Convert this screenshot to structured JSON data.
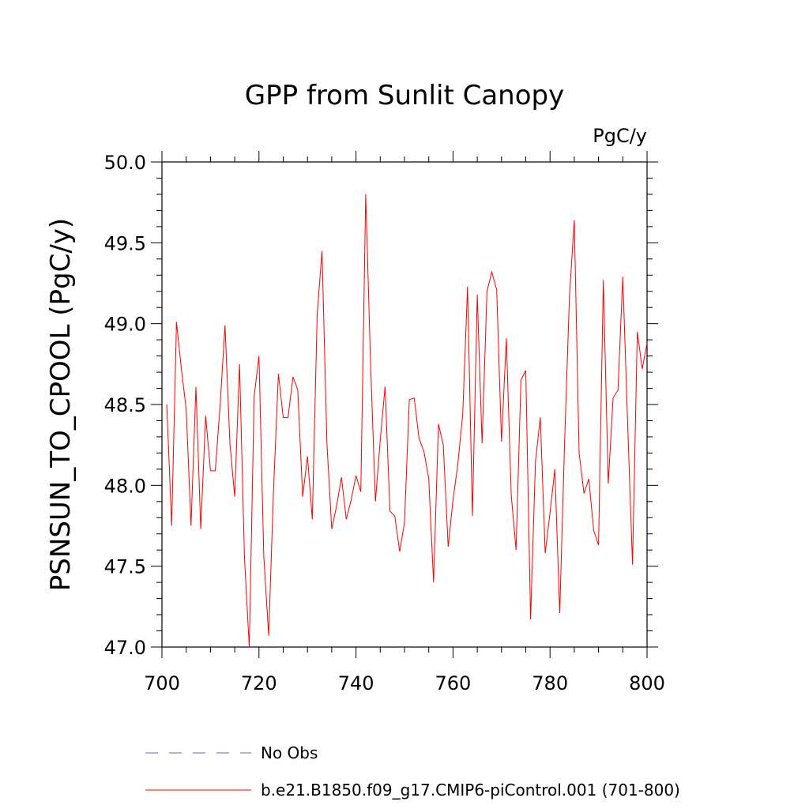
{
  "chart_data": {
    "type": "line",
    "title": "GPP from Sunlit Canopy",
    "units": "PgC/y",
    "xlabel": "",
    "ylabel": "PSNSUN_TO_CPOOL  (PgC/y)",
    "xlim": [
      700,
      800
    ],
    "ylim": [
      47.0,
      50.0
    ],
    "x_ticks": [
      700,
      720,
      740,
      760,
      780,
      800
    ],
    "x_tick_labels": [
      "700",
      "720",
      "740",
      "760",
      "780",
      "800"
    ],
    "y_ticks": [
      47.0,
      47.5,
      48.0,
      48.5,
      49.0,
      49.5,
      50.0
    ],
    "y_tick_labels": [
      "47.0",
      "47.5",
      "48.0",
      "48.5",
      "49.0",
      "49.5",
      "50.0"
    ],
    "series": [
      {
        "name": "b.e21.B1850.f09_g17.CMIP6-piControl.001 (701-800)",
        "color": "#ff0000",
        "style": "solid",
        "x": [
          701,
          702,
          703,
          704,
          705,
          706,
          707,
          708,
          709,
          710,
          711,
          712,
          713,
          714,
          715,
          716,
          717,
          718,
          719,
          720,
          721,
          722,
          723,
          724,
          725,
          726,
          727,
          728,
          729,
          730,
          731,
          732,
          733,
          734,
          735,
          736,
          737,
          738,
          739,
          740,
          741,
          742,
          743,
          744,
          745,
          746,
          747,
          748,
          749,
          750,
          751,
          752,
          753,
          754,
          755,
          756,
          757,
          758,
          759,
          760,
          761,
          762,
          763,
          764,
          765,
          766,
          767,
          768,
          769,
          770,
          771,
          772,
          773,
          774,
          775,
          776,
          777,
          778,
          779,
          780,
          781,
          782,
          783,
          784,
          785,
          786,
          787,
          788,
          789,
          790,
          791,
          792,
          793,
          794,
          795,
          796,
          797,
          798,
          799,
          800
        ],
        "values": [
          48.5,
          47.75,
          49.01,
          48.72,
          48.47,
          47.75,
          48.61,
          47.73,
          48.43,
          48.09,
          48.09,
          48.5,
          48.99,
          48.26,
          47.93,
          48.75,
          47.56,
          47.0,
          48.55,
          48.8,
          47.56,
          47.07,
          47.97,
          48.69,
          48.42,
          48.42,
          48.67,
          48.59,
          47.93,
          48.18,
          47.79,
          49.06,
          49.45,
          48.26,
          47.73,
          47.87,
          48.05,
          47.79,
          47.91,
          48.06,
          47.96,
          49.8,
          48.76,
          47.9,
          48.28,
          48.61,
          47.84,
          47.81,
          47.59,
          47.77,
          48.53,
          48.54,
          48.29,
          48.21,
          48.04,
          47.4,
          48.38,
          48.25,
          47.62,
          47.91,
          48.13,
          48.44,
          49.23,
          47.81,
          49.18,
          48.26,
          49.2,
          49.32,
          49.21,
          48.27,
          48.91,
          47.94,
          47.6,
          48.65,
          48.71,
          47.17,
          48.15,
          48.42,
          47.58,
          47.83,
          48.1,
          47.21,
          48.26,
          49.17,
          49.64,
          48.2,
          47.95,
          48.04,
          47.72,
          47.63,
          49.27,
          48.01,
          48.54,
          48.59,
          49.29,
          48.39,
          47.51,
          48.95,
          48.72,
          48.88
        ]
      },
      {
        "name": "No Obs",
        "color": "#7060c0",
        "style": "dashed",
        "x": [],
        "values": []
      }
    ],
    "legend": {
      "placement": "bottom",
      "entries": [
        "No Obs",
        "b.e21.B1850.f09_g17.CMIP6-piControl.001 (701-800)"
      ]
    }
  }
}
